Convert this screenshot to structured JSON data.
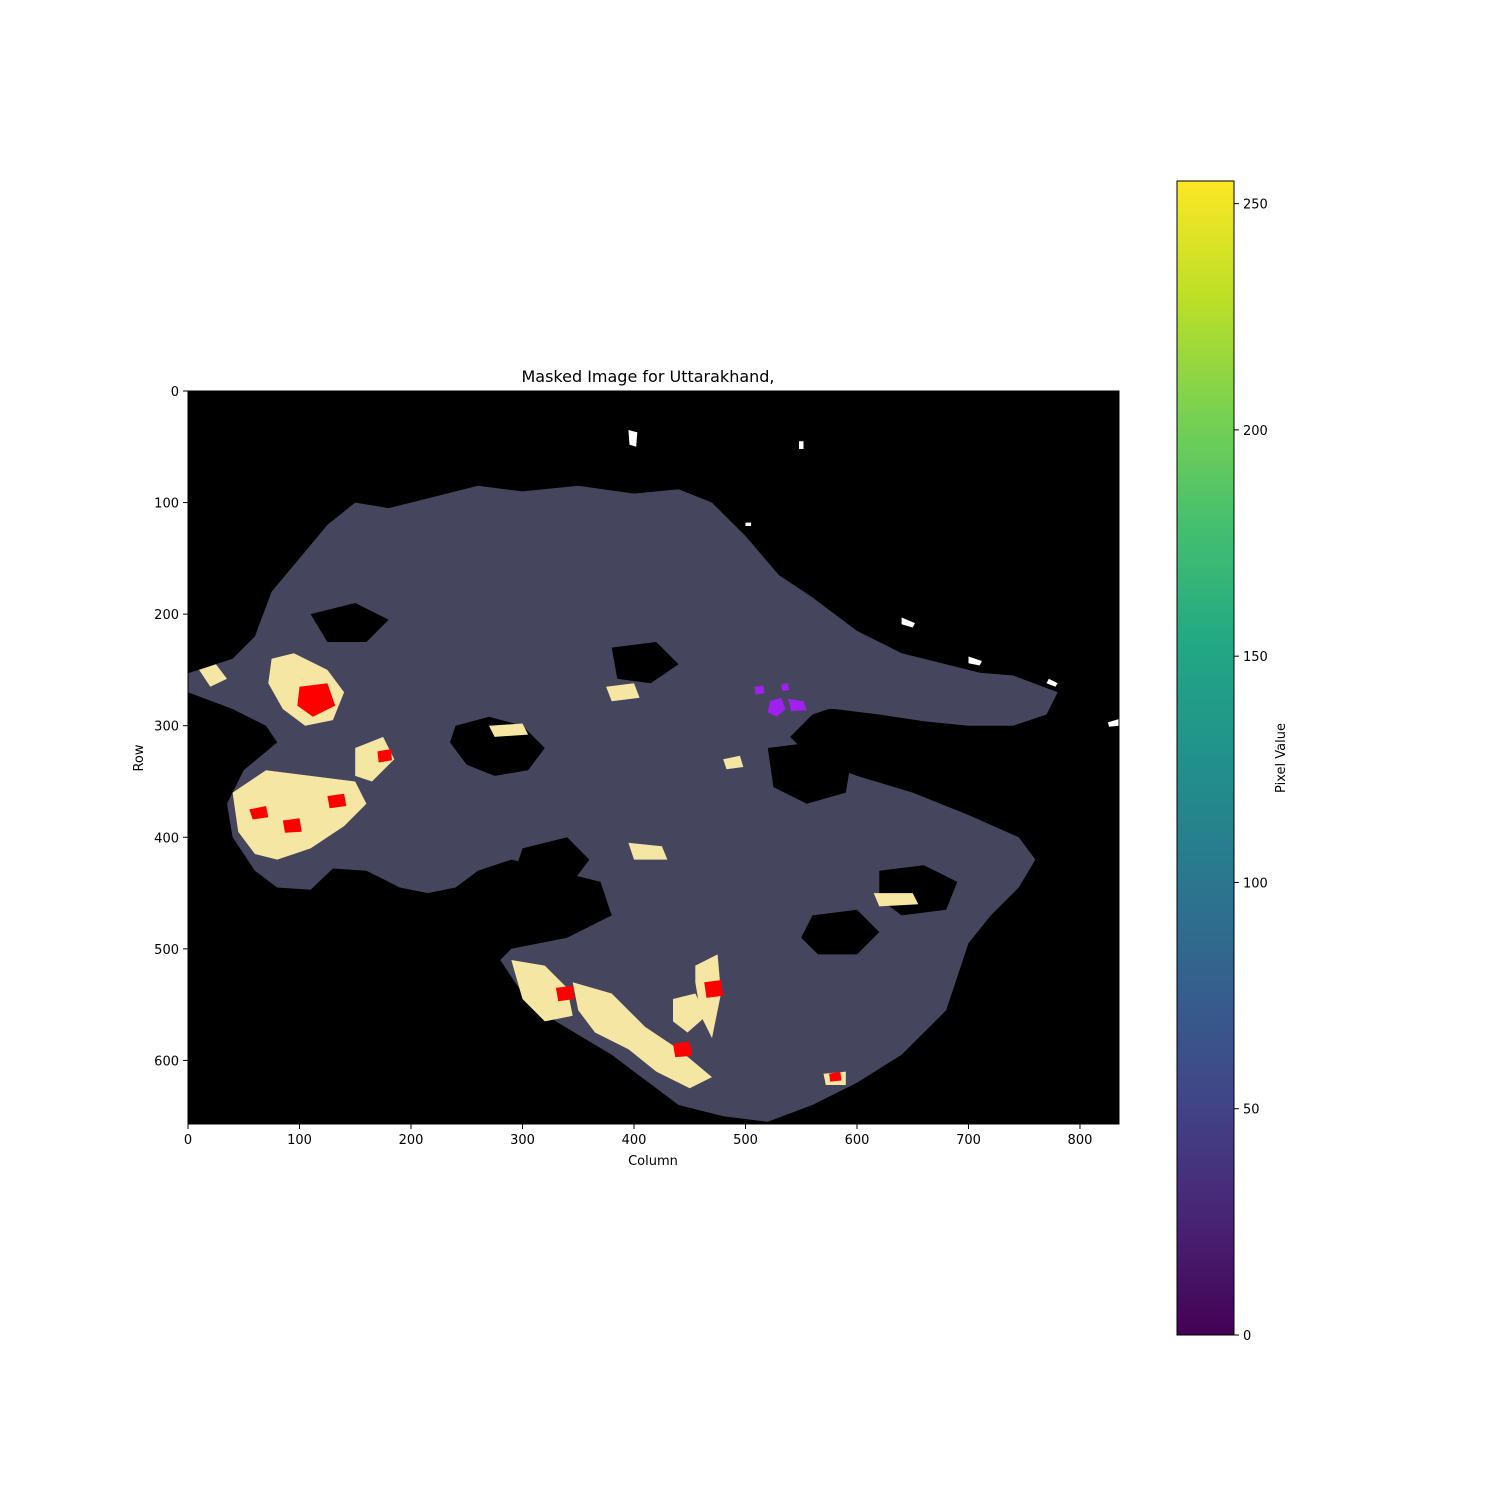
{
  "chart_data": {
    "type": "heatmap",
    "title": "Masked Image for Uttarakhand,",
    "xlabel": "Column",
    "ylabel": "Row",
    "xlim": [
      0,
      835
    ],
    "ylim": [
      657,
      0
    ],
    "xticks": [
      "0",
      "100",
      "200",
      "300",
      "400",
      "500",
      "600",
      "700",
      "800"
    ],
    "yticks": [
      "0",
      "100",
      "200",
      "300",
      "400",
      "500",
      "600"
    ],
    "colorbar": {
      "label": "Pixel Value",
      "colormap": "viridis",
      "range": [
        0,
        255
      ],
      "ticks": [
        "0",
        "50",
        "100",
        "150",
        "200",
        "250"
      ]
    },
    "grid": false,
    "colors": {
      "background": "#000000",
      "land": "#46455e",
      "urban_low": "#f5e6a3",
      "urban_high": "#ff0000",
      "highlight": "#a020f0",
      "snow": "#ffffff"
    },
    "regions": {
      "land": [
        [
          [
            0,
            253
          ],
          [
            40,
            240
          ],
          [
            60,
            220
          ],
          [
            75,
            180
          ],
          [
            100,
            150
          ],
          [
            125,
            120
          ],
          [
            150,
            100
          ],
          [
            180,
            105
          ],
          [
            220,
            95
          ],
          [
            260,
            85
          ],
          [
            300,
            90
          ],
          [
            350,
            85
          ],
          [
            400,
            92
          ],
          [
            440,
            88
          ],
          [
            470,
            100
          ],
          [
            500,
            130
          ],
          [
            530,
            165
          ],
          [
            560,
            185
          ],
          [
            580,
            200
          ],
          [
            600,
            215
          ],
          [
            640,
            235
          ],
          [
            700,
            250
          ],
          [
            740,
            260
          ],
          [
            760,
            275
          ],
          [
            725,
            285
          ],
          [
            700,
            278
          ],
          [
            660,
            280
          ],
          [
            620,
            275
          ],
          [
            590,
            280
          ],
          [
            560,
            290
          ],
          [
            540,
            310
          ],
          [
            560,
            330
          ],
          [
            600,
            345
          ],
          [
            650,
            360
          ],
          [
            700,
            380
          ],
          [
            745,
            400
          ],
          [
            760,
            420
          ],
          [
            745,
            445
          ],
          [
            720,
            470
          ],
          [
            700,
            495
          ],
          [
            690,
            525
          ],
          [
            680,
            555
          ],
          [
            660,
            575
          ],
          [
            640,
            595
          ],
          [
            600,
            620
          ],
          [
            560,
            640
          ],
          [
            520,
            655
          ],
          [
            480,
            650
          ],
          [
            440,
            640
          ],
          [
            420,
            625
          ],
          [
            400,
            610
          ],
          [
            380,
            595
          ],
          [
            355,
            580
          ],
          [
            330,
            565
          ],
          [
            300,
            540
          ],
          [
            280,
            510
          ],
          [
            290,
            500
          ],
          [
            340,
            490
          ],
          [
            380,
            470
          ],
          [
            370,
            440
          ],
          [
            330,
            430
          ],
          [
            290,
            420
          ],
          [
            260,
            430
          ],
          [
            240,
            445
          ],
          [
            215,
            450
          ],
          [
            190,
            445
          ],
          [
            160,
            430
          ],
          [
            130,
            428
          ],
          [
            110,
            447
          ],
          [
            80,
            445
          ],
          [
            60,
            430
          ],
          [
            40,
            400
          ],
          [
            35,
            370
          ],
          [
            50,
            340
          ],
          [
            80,
            315
          ],
          [
            70,
            300
          ],
          [
            40,
            285
          ],
          [
            0,
            270
          ]
        ],
        [
          [
            520,
            260
          ],
          [
            600,
            255
          ],
          [
            680,
            250
          ],
          [
            740,
            255
          ],
          [
            780,
            270
          ],
          [
            770,
            290
          ],
          [
            740,
            300
          ],
          [
            700,
            300
          ],
          [
            660,
            296
          ],
          [
            620,
            290
          ],
          [
            580,
            285
          ],
          [
            545,
            285
          ]
        ]
      ],
      "dark": [
        [
          [
            240,
            300
          ],
          [
            270,
            292
          ],
          [
            300,
            300
          ],
          [
            320,
            320
          ],
          [
            305,
            340
          ],
          [
            275,
            345
          ],
          [
            250,
            335
          ],
          [
            235,
            315
          ]
        ],
        [
          [
            520,
            320
          ],
          [
            560,
            315
          ],
          [
            595,
            330
          ],
          [
            590,
            360
          ],
          [
            555,
            370
          ],
          [
            525,
            355
          ]
        ],
        [
          [
            300,
            410
          ],
          [
            340,
            400
          ],
          [
            360,
            420
          ],
          [
            345,
            440
          ],
          [
            310,
            440
          ],
          [
            295,
            425
          ]
        ],
        [
          [
            620,
            430
          ],
          [
            660,
            425
          ],
          [
            690,
            440
          ],
          [
            680,
            465
          ],
          [
            640,
            470
          ],
          [
            620,
            455
          ]
        ],
        [
          [
            560,
            470
          ],
          [
            600,
            465
          ],
          [
            620,
            485
          ],
          [
            600,
            505
          ],
          [
            565,
            505
          ],
          [
            550,
            490
          ]
        ],
        [
          [
            110,
            200
          ],
          [
            150,
            190
          ],
          [
            180,
            205
          ],
          [
            160,
            225
          ],
          [
            125,
            225
          ]
        ],
        [
          [
            380,
            230
          ],
          [
            420,
            225
          ],
          [
            440,
            245
          ],
          [
            415,
            262
          ],
          [
            385,
            258
          ]
        ]
      ],
      "urban_low": [
        [
          [
            75,
            240
          ],
          [
            95,
            235
          ],
          [
            125,
            250
          ],
          [
            140,
            270
          ],
          [
            130,
            295
          ],
          [
            105,
            300
          ],
          [
            85,
            285
          ],
          [
            72,
            262
          ]
        ],
        [
          [
            40,
            360
          ],
          [
            70,
            340
          ],
          [
            110,
            345
          ],
          [
            150,
            350
          ],
          [
            160,
            370
          ],
          [
            140,
            390
          ],
          [
            110,
            410
          ],
          [
            80,
            420
          ],
          [
            60,
            415
          ],
          [
            45,
            395
          ]
        ],
        [
          [
            150,
            320
          ],
          [
            175,
            310
          ],
          [
            185,
            330
          ],
          [
            165,
            350
          ],
          [
            150,
            345
          ]
        ],
        [
          [
            290,
            510
          ],
          [
            320,
            515
          ],
          [
            340,
            535
          ],
          [
            345,
            560
          ],
          [
            320,
            565
          ],
          [
            300,
            545
          ]
        ],
        [
          [
            345,
            530
          ],
          [
            380,
            540
          ],
          [
            410,
            570
          ],
          [
            440,
            590
          ],
          [
            470,
            615
          ],
          [
            450,
            625
          ],
          [
            420,
            610
          ],
          [
            395,
            590
          ],
          [
            365,
            575
          ],
          [
            350,
            555
          ]
        ],
        [
          [
            455,
            515
          ],
          [
            475,
            505
          ],
          [
            478,
            540
          ],
          [
            470,
            580
          ],
          [
            460,
            560
          ],
          [
            455,
            530
          ]
        ],
        [
          [
            435,
            545
          ],
          [
            455,
            540
          ],
          [
            465,
            560
          ],
          [
            448,
            575
          ],
          [
            435,
            565
          ]
        ],
        [
          [
            10,
            250
          ],
          [
            25,
            245
          ],
          [
            35,
            258
          ],
          [
            20,
            265
          ]
        ],
        [
          [
            395,
            405
          ],
          [
            425,
            408
          ],
          [
            430,
            420
          ],
          [
            400,
            420
          ]
        ],
        [
          [
            615,
            450
          ],
          [
            650,
            450
          ],
          [
            655,
            460
          ],
          [
            620,
            462
          ]
        ],
        [
          [
            270,
            300
          ],
          [
            300,
            298
          ],
          [
            305,
            308
          ],
          [
            275,
            310
          ]
        ],
        [
          [
            570,
            612
          ],
          [
            590,
            610
          ],
          [
            590,
            622
          ],
          [
            572,
            622
          ]
        ],
        [
          [
            375,
            265
          ],
          [
            400,
            262
          ],
          [
            405,
            275
          ],
          [
            380,
            278
          ]
        ],
        [
          [
            480,
            330
          ],
          [
            495,
            327
          ],
          [
            498,
            337
          ],
          [
            483,
            339
          ]
        ]
      ],
      "urban_high": [
        [
          [
            100,
            265
          ],
          [
            125,
            262
          ],
          [
            132,
            282
          ],
          [
            112,
            292
          ],
          [
            98,
            282
          ]
        ],
        [
          [
            55,
            375
          ],
          [
            70,
            372
          ],
          [
            72,
            382
          ],
          [
            58,
            384
          ]
        ],
        [
          [
            85,
            385
          ],
          [
            100,
            383
          ],
          [
            102,
            395
          ],
          [
            87,
            396
          ]
        ],
        [
          [
            125,
            363
          ],
          [
            140,
            361
          ],
          [
            142,
            372
          ],
          [
            127,
            374
          ]
        ],
        [
          [
            330,
            535
          ],
          [
            345,
            533
          ],
          [
            347,
            545
          ],
          [
            332,
            547
          ]
        ],
        [
          [
            435,
            585
          ],
          [
            450,
            583
          ],
          [
            452,
            596
          ],
          [
            437,
            597
          ]
        ],
        [
          [
            463,
            530
          ],
          [
            478,
            528
          ],
          [
            480,
            542
          ],
          [
            465,
            544
          ]
        ],
        [
          [
            170,
            323
          ],
          [
            182,
            321
          ],
          [
            183,
            331
          ],
          [
            171,
            333
          ]
        ],
        [
          [
            575,
            612
          ],
          [
            585,
            610
          ],
          [
            586,
            618
          ],
          [
            576,
            619
          ]
        ]
      ],
      "highlight": [
        [
          [
            522,
            278
          ],
          [
            532,
            275
          ],
          [
            536,
            285
          ],
          [
            528,
            292
          ],
          [
            520,
            288
          ]
        ],
        [
          [
            538,
            276
          ],
          [
            552,
            278
          ],
          [
            555,
            286
          ],
          [
            541,
            287
          ]
        ],
        [
          [
            508,
            265
          ],
          [
            516,
            264
          ],
          [
            517,
            271
          ],
          [
            509,
            272
          ]
        ],
        [
          [
            532,
            263
          ],
          [
            538,
            262
          ],
          [
            539,
            268
          ],
          [
            533,
            269
          ]
        ]
      ],
      "snow": [
        [
          [
            395,
            35
          ],
          [
            403,
            37
          ],
          [
            402,
            50
          ],
          [
            396,
            48
          ]
        ],
        [
          [
            640,
            203
          ],
          [
            652,
            208
          ],
          [
            650,
            212
          ],
          [
            640,
            209
          ]
        ],
        [
          [
            700,
            238
          ],
          [
            712,
            242
          ],
          [
            710,
            246
          ],
          [
            700,
            244
          ]
        ],
        [
          [
            825,
            297
          ],
          [
            835,
            294
          ],
          [
            835,
            300
          ],
          [
            826,
            301
          ]
        ],
        [
          [
            772,
            258
          ],
          [
            780,
            262
          ],
          [
            778,
            265
          ],
          [
            770,
            262
          ]
        ],
        [
          [
            548,
            45
          ],
          [
            552,
            45
          ],
          [
            552,
            52
          ],
          [
            548,
            52
          ]
        ],
        [
          [
            500,
            118
          ],
          [
            505,
            118
          ],
          [
            505,
            121
          ],
          [
            500,
            121
          ]
        ]
      ]
    }
  }
}
